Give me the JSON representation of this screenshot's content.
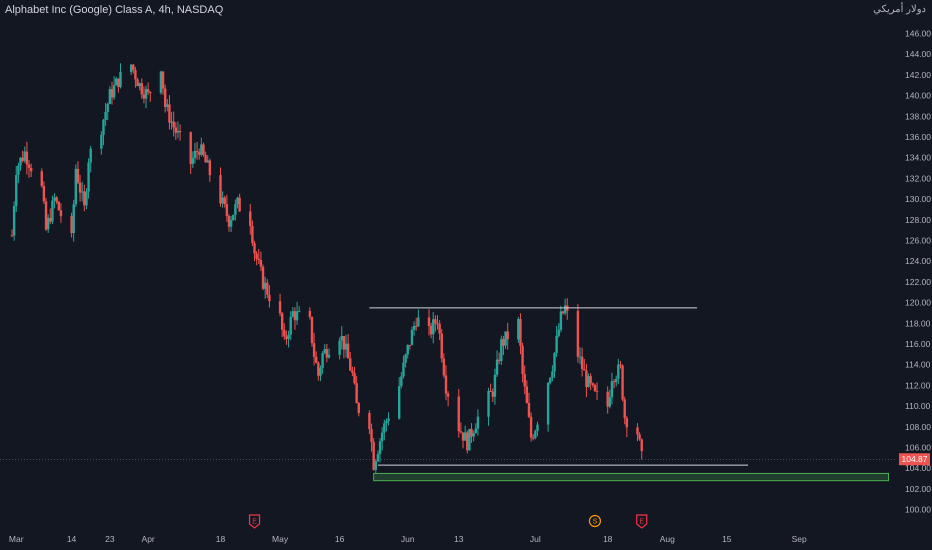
{
  "header": {
    "title": "Alphabet Inc (Google) Class A, 4h, NASDAQ",
    "currency": "دولار أمريكي"
  },
  "chart_data": {
    "type": "candlestick",
    "symbol": "Alphabet Inc (Google) Class A",
    "interval": "4h",
    "exchange": "NASDAQ",
    "y_ticks": [
      "146.00",
      "144.00",
      "142.00",
      "140.00",
      "138.00",
      "136.00",
      "134.00",
      "132.00",
      "130.00",
      "128.00",
      "126.00",
      "124.00",
      "122.00",
      "120.00",
      "118.00",
      "116.00",
      "114.00",
      "112.00",
      "110.00",
      "108.00",
      "106.00",
      "104.00",
      "102.00",
      "100.00"
    ],
    "y_range": [
      99.0,
      147.5
    ],
    "x_ticks": [
      {
        "label": "Mar",
        "date": "2022-03-01"
      },
      {
        "label": "14",
        "date": "2022-03-14"
      },
      {
        "label": "23",
        "date": "2022-03-23"
      },
      {
        "label": "Apr",
        "date": "2022-04-01"
      },
      {
        "label": "18",
        "date": "2022-04-18"
      },
      {
        "label": "May",
        "date": "2022-05-02"
      },
      {
        "label": "16",
        "date": "2022-05-16"
      },
      {
        "label": "Jun",
        "date": "2022-06-01"
      },
      {
        "label": "13",
        "date": "2022-06-13"
      },
      {
        "label": "Jul",
        "date": "2022-07-01"
      },
      {
        "label": "18",
        "date": "2022-07-18"
      },
      {
        "label": "Aug",
        "date": "2022-08-01"
      },
      {
        "label": "15",
        "date": "2022-08-15"
      },
      {
        "label": "Sep",
        "date": "2022-09-01"
      }
    ],
    "last_price": "104.87",
    "colors": {
      "up": "#26a69a",
      "down": "#ef5350",
      "background": "#131722",
      "support_zone": "#4caf50"
    },
    "closes_path": [
      [
        "2022-02-28",
        126.5
      ],
      [
        "2022-03-01",
        133.0
      ],
      [
        "2022-03-03",
        134.5
      ],
      [
        "2022-03-07",
        131.0
      ],
      [
        "2022-03-08",
        127.0
      ],
      [
        "2022-03-10",
        130.0
      ],
      [
        "2022-03-14",
        126.0
      ],
      [
        "2022-03-15",
        133.0
      ],
      [
        "2022-03-17",
        129.0
      ],
      [
        "2022-03-18",
        134.0
      ],
      [
        "2022-03-21",
        137.0
      ],
      [
        "2022-03-23",
        140.0
      ],
      [
        "2022-03-25",
        141.5
      ],
      [
        "2022-03-28",
        143.0
      ],
      [
        "2022-03-30",
        141.0
      ],
      [
        "2022-04-01",
        140.0
      ],
      [
        "2022-04-04",
        143.0
      ],
      [
        "2022-04-05",
        139.0
      ],
      [
        "2022-04-07",
        137.0
      ],
      [
        "2022-04-11",
        133.5
      ],
      [
        "2022-04-13",
        135.0
      ],
      [
        "2022-04-18",
        130.0
      ],
      [
        "2022-04-20",
        128.0
      ],
      [
        "2022-04-22",
        129.5
      ],
      [
        "2022-04-25",
        128.0
      ],
      [
        "2022-04-26",
        125.0
      ],
      [
        "2022-04-28",
        122.0
      ],
      [
        "2022-05-02",
        118.5
      ],
      [
        "2022-05-03",
        116.0
      ],
      [
        "2022-05-05",
        119.0
      ],
      [
        "2022-05-09",
        118.0
      ],
      [
        "2022-05-10",
        115.0
      ],
      [
        "2022-05-11",
        113.0
      ],
      [
        "2022-05-12",
        115.0
      ],
      [
        "2022-05-16",
        117.0
      ],
      [
        "2022-05-17",
        116.0
      ],
      [
        "2022-05-19",
        113.0
      ],
      [
        "2022-05-20",
        110.0
      ],
      [
        "2022-05-23",
        108.5
      ],
      [
        "2022-05-24",
        104.5
      ],
      [
        "2022-05-26",
        107.5
      ],
      [
        "2022-05-30",
        112.0
      ],
      [
        "2022-06-01",
        115.5
      ],
      [
        "2022-06-03",
        118.5
      ],
      [
        "2022-06-06",
        117.0
      ],
      [
        "2022-06-08",
        118.5
      ],
      [
        "2022-06-10",
        112.0
      ],
      [
        "2022-06-13",
        108.0
      ],
      [
        "2022-06-15",
        106.5
      ],
      [
        "2022-06-17",
        108.5
      ],
      [
        "2022-06-21",
        111.5
      ],
      [
        "2022-06-23",
        116.0
      ],
      [
        "2022-06-27",
        118.0
      ],
      [
        "2022-06-28",
        113.0
      ],
      [
        "2022-06-30",
        107.0
      ],
      [
        "2022-07-01",
        108.0
      ],
      [
        "2022-07-05",
        114.0
      ],
      [
        "2022-07-07",
        118.5
      ],
      [
        "2022-07-08",
        119.5
      ],
      [
        "2022-07-11",
        115.0
      ],
      [
        "2022-07-13",
        112.5
      ],
      [
        "2022-07-15",
        111.0
      ],
      [
        "2022-07-18",
        110.0
      ],
      [
        "2022-07-19",
        113.0
      ],
      [
        "2022-07-21",
        113.5
      ],
      [
        "2022-07-22",
        109.0
      ],
      [
        "2022-07-25",
        107.5
      ],
      [
        "2022-07-26",
        104.9
      ]
    ],
    "annotations": {
      "resistance_line": {
        "price": 119.5,
        "from": "2022-05-23",
        "to": "2022-08-08"
      },
      "support_line": {
        "price": 104.3,
        "from": "2022-05-25",
        "to": "2022-08-20"
      },
      "support_zone": {
        "price_top": 103.5,
        "price_bottom": 102.8,
        "from": "2022-05-24",
        "to": "2022-09-22"
      },
      "events": [
        {
          "label": "E",
          "date": "2022-04-26",
          "type": "earnings",
          "color": "#f23645"
        },
        {
          "label": "S",
          "date": "2022-07-15",
          "type": "split",
          "color": "#ff9800"
        },
        {
          "label": "E",
          "date": "2022-07-26",
          "type": "earnings",
          "color": "#f23645"
        }
      ]
    }
  }
}
